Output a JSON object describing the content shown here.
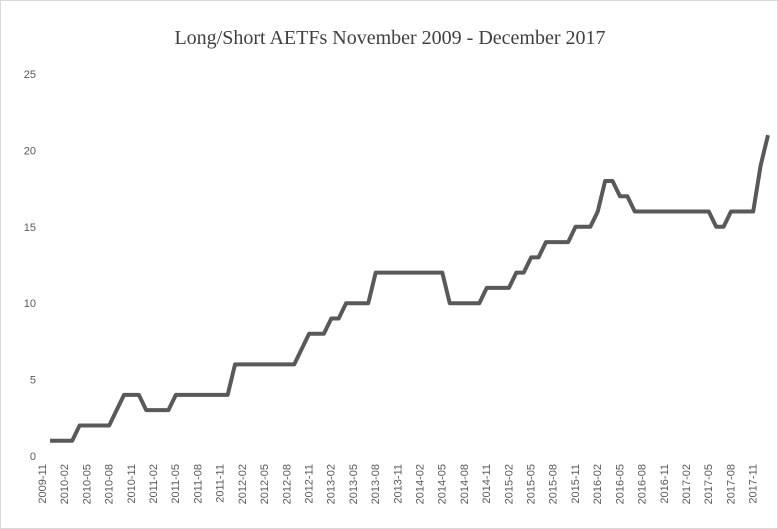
{
  "chart_data": {
    "type": "line",
    "title": "Long/Short AETFs November 2009  - December 2017",
    "categories": [
      "2009-11",
      null,
      null,
      "2010-02",
      null,
      null,
      "2010-05",
      null,
      null,
      "2010-08",
      null,
      null,
      "2010-11",
      null,
      null,
      "2011-02",
      null,
      null,
      "2011-05",
      null,
      null,
      "2011-08",
      null,
      null,
      "2011-11",
      null,
      null,
      "2012-02",
      null,
      null,
      "2012-05",
      null,
      null,
      "2012-08",
      null,
      null,
      "2012-11",
      null,
      null,
      "2013-02",
      null,
      null,
      "2013-05",
      null,
      null,
      "2013-08",
      null,
      null,
      "2013-11",
      null,
      null,
      "2014-02",
      null,
      null,
      "2014-05",
      null,
      null,
      "2014-08",
      null,
      null,
      "2014-11",
      null,
      null,
      "2015-02",
      null,
      null,
      "2015-05",
      null,
      null,
      "2015-08",
      null,
      null,
      "2015-11",
      null,
      null,
      "2016-02",
      null,
      null,
      "2016-05",
      null,
      null,
      "2016-08",
      null,
      null,
      "2016-11",
      null,
      null,
      "2017-02",
      null,
      null,
      "2017-05",
      null,
      null,
      "2017-08",
      null,
      null,
      "2017-11",
      null
    ],
    "values": [
      1,
      1,
      1,
      1,
      2,
      2,
      2,
      2,
      2,
      3,
      4,
      4,
      4,
      3,
      3,
      3,
      3,
      4,
      4,
      4,
      4,
      4,
      4,
      4,
      4,
      6,
      6,
      6,
      6,
      6,
      6,
      6,
      6,
      6,
      7,
      8,
      8,
      8,
      9,
      9,
      10,
      10,
      10,
      10,
      12,
      12,
      12,
      12,
      12,
      12,
      12,
      12,
      12,
      12,
      10,
      10,
      10,
      10,
      10,
      11,
      11,
      11,
      11,
      12,
      12,
      13,
      13,
      14,
      14,
      14,
      14,
      15,
      15,
      15,
      16,
      18,
      18,
      17,
      17,
      16,
      16,
      16,
      16,
      16,
      16,
      16,
      16,
      16,
      16,
      16,
      15,
      15,
      16,
      16,
      16,
      16,
      19,
      21
    ],
    "color": "#595959",
    "ylim": [
      0,
      25
    ],
    "yticks": [
      0,
      5,
      10,
      15,
      20,
      25
    ],
    "grid": false
  }
}
